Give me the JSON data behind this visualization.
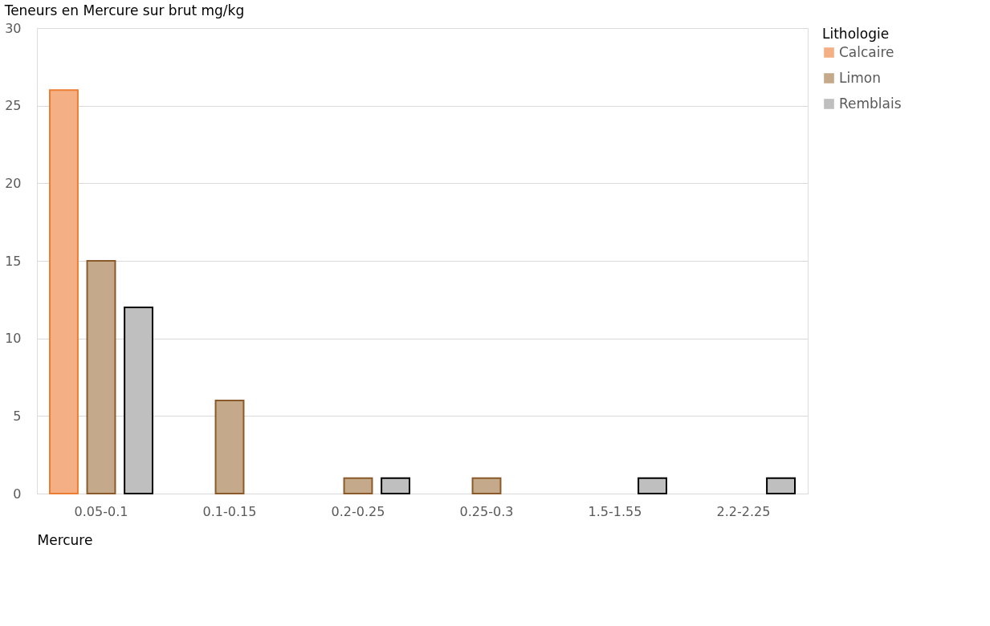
{
  "chart_data": {
    "type": "bar",
    "title": "Teneurs en Mercure sur brut mg/kg",
    "xlabel": "Mercure",
    "legend_title": "Lithologie",
    "categories": [
      "0.05-0.1",
      "0.1-0.15",
      "0.2-0.25",
      "0.25-0.3",
      "1.5-1.55",
      "2.2-2.25"
    ],
    "series": [
      {
        "name": "Calcaire",
        "color": "#f4b084",
        "values": [
          26,
          null,
          null,
          null,
          null,
          null
        ]
      },
      {
        "name": "Limon",
        "color": "#c4a98a",
        "values": [
          15,
          6,
          1,
          1,
          null,
          null
        ]
      },
      {
        "name": "Remblais",
        "color": "#bfbfbf",
        "values": [
          12,
          null,
          1,
          null,
          1,
          1
        ]
      }
    ],
    "ylim": [
      0,
      30
    ],
    "yticks": [
      0,
      5,
      10,
      15,
      20,
      25,
      30
    ],
    "grid": "y",
    "legend": "right"
  }
}
